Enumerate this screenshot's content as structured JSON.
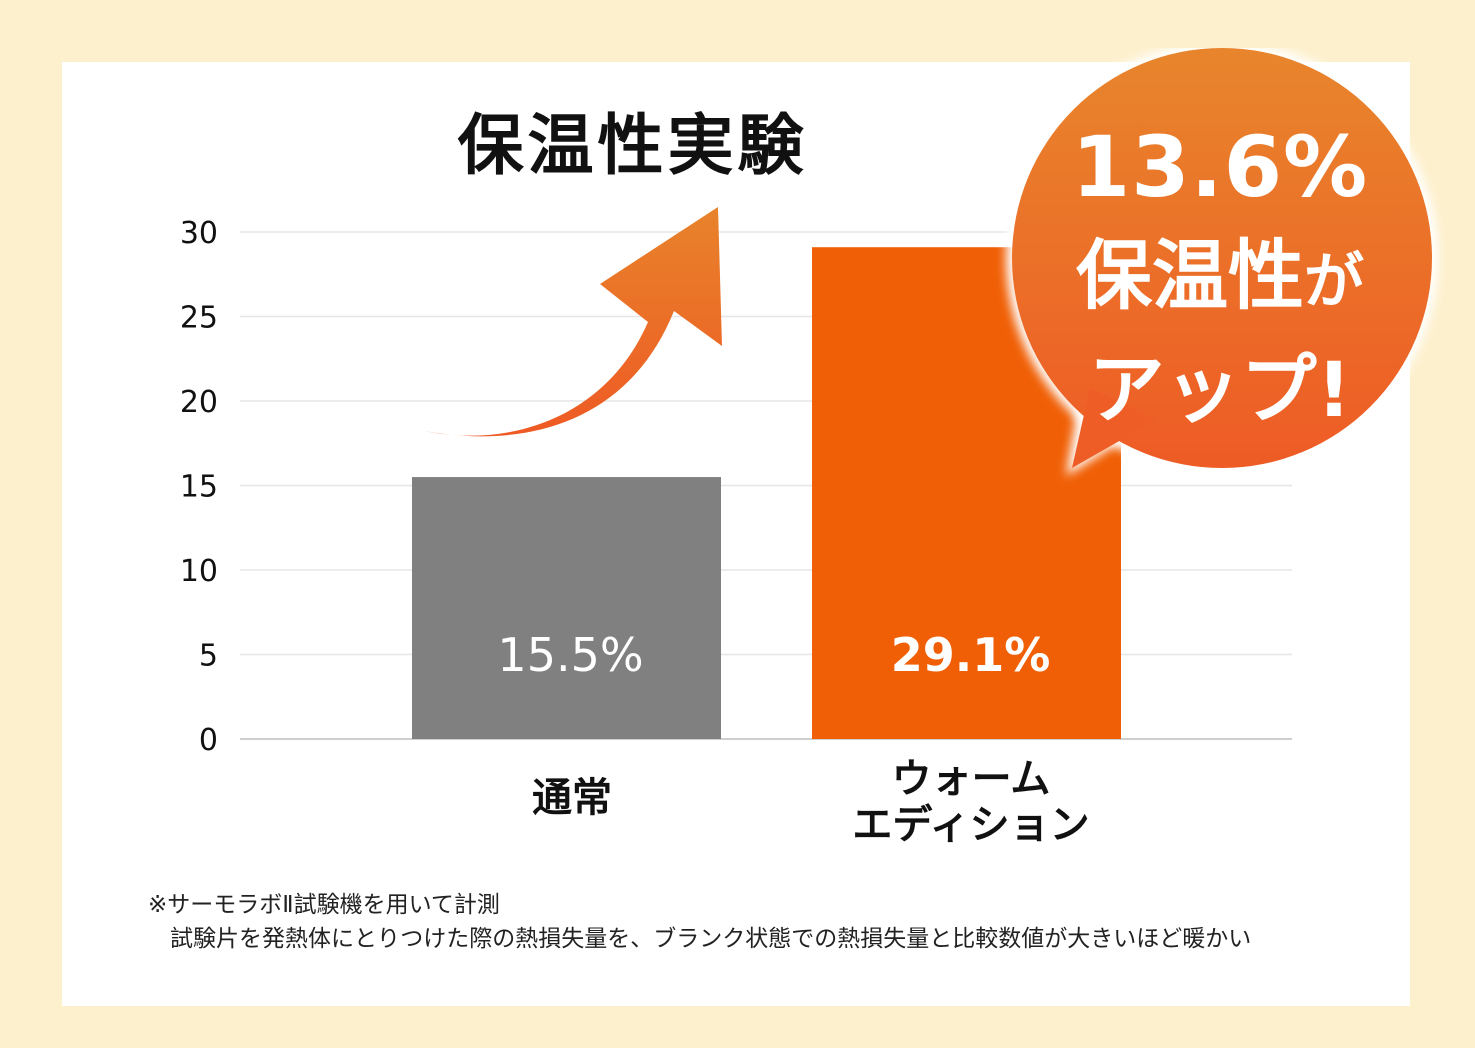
{
  "chart_data": {
    "type": "bar",
    "title": "保温性実験",
    "categories": [
      "通常",
      "ウォーム\nエディション"
    ],
    "values": [
      15.5,
      29.1
    ],
    "value_labels": [
      "15.5%",
      "29.1%"
    ],
    "yticks": [
      0,
      5,
      10,
      15,
      20,
      25,
      30
    ],
    "ylim": [
      0,
      30
    ],
    "grid": true,
    "colors": [
      "#808080",
      "#f05f05"
    ]
  },
  "callout": {
    "value": "13.6%",
    "line1_main": "保温性",
    "line1_small": "が",
    "line2": "アップ!"
  },
  "note": {
    "line1": "※サーモラボⅡ試験機を用いて計測",
    "line2": "試験片を発熱体にとりつけた際の熱損失量を、ブランク状態での熱損失量と比較数値が大きいほど暖かい"
  },
  "colors": {
    "background": "#fdf0cd",
    "arrow_top": "#e8832b",
    "arrow_bottom": "#ee5a24"
  }
}
